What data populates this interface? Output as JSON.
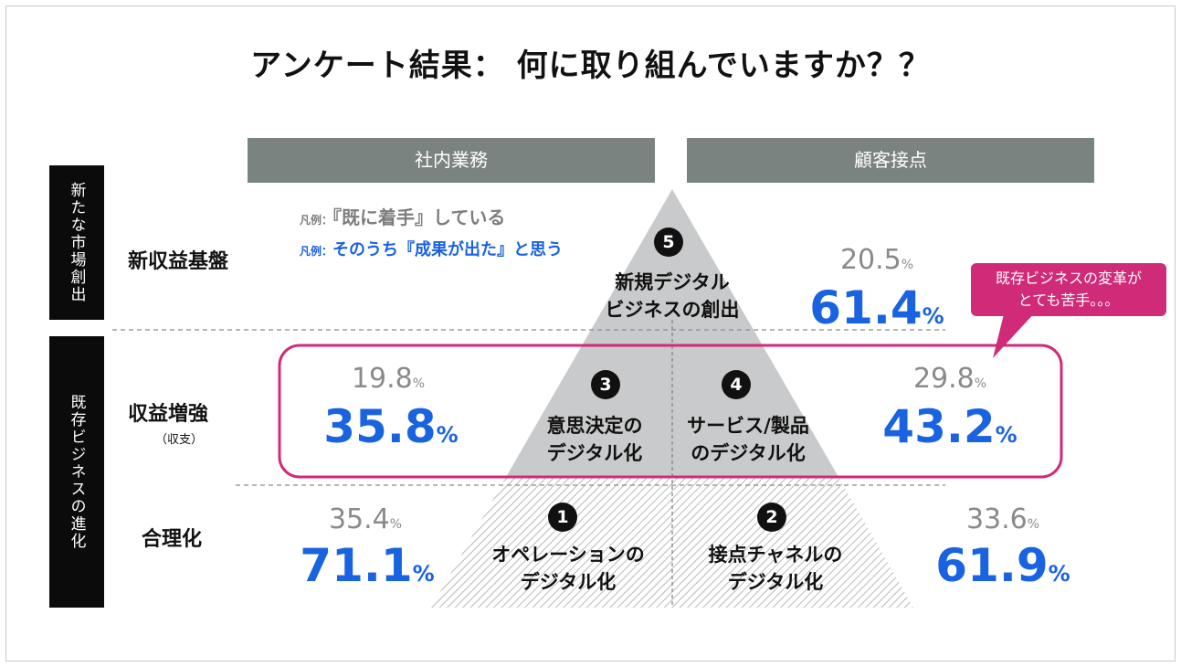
{
  "title": "アンケート結果： 何に取り組んでいますか？？",
  "columns": {
    "left": "社内業務",
    "right": "顧客接点"
  },
  "side": {
    "top": "新たな市場創出",
    "bottom": "既存ビジネスの進化"
  },
  "rows": {
    "new_revenue": "新収益基盤",
    "revenue_boost": "収益増強",
    "revenue_boost_sub": "（収支）",
    "rationalize": "合理化"
  },
  "legend": {
    "prefix": "凡例：",
    "started": "『既に着手』している",
    "results": "そのうち『成果が出た』と思う"
  },
  "pct_unit": "%",
  "items": [
    {
      "num": "1",
      "line1": "オペレーションの",
      "line2": "デジタル化",
      "started": "35.4",
      "results": "71.1"
    },
    {
      "num": "2",
      "line1": "接点チャネルの",
      "line2": "デジタル化",
      "started": "33.6",
      "results": "61.9"
    },
    {
      "num": "3",
      "line1": "意思決定の",
      "line2": "デジタル化",
      "started": "19.8",
      "results": "35.8"
    },
    {
      "num": "4",
      "line1": "サービス/製品",
      "line2": "のデジタル化",
      "started": "29.8",
      "results": "43.2"
    },
    {
      "num": "5",
      "line1": "新規デジタル",
      "line2": "ビジネスの創出",
      "started": "20.5",
      "results": "61.4"
    }
  ],
  "callout": {
    "line1": "既存ビジネスの変革が",
    "line2": "とても苦手。。。"
  },
  "colors": {
    "accent_blue": "#1a63e0",
    "highlight_pink": "#d02b78",
    "header_gray": "#7b8381",
    "pyramid_gray": "#c9cacb"
  }
}
